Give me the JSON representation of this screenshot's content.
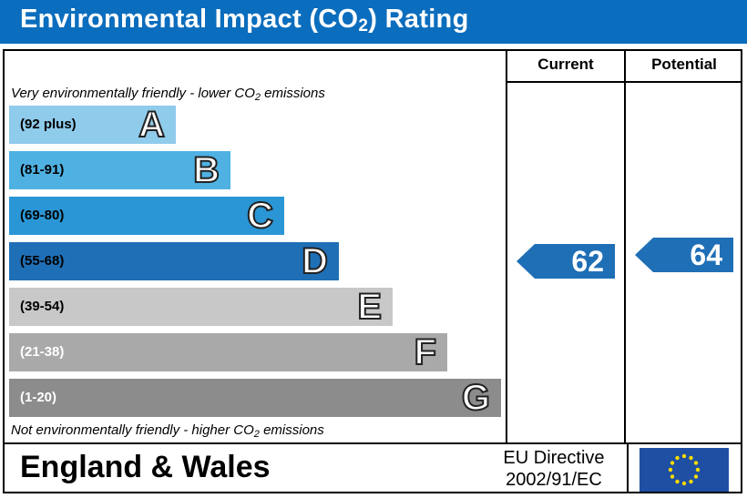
{
  "title": {
    "prefix": "Environmental Impact (CO",
    "sub": "2",
    "suffix": ") Rating"
  },
  "columns": {
    "current": "Current",
    "potential": "Potential"
  },
  "notes": {
    "top_prefix": "Very environmentally friendly - lower CO",
    "top_sub": "2",
    "top_suffix": " emissions",
    "bottom_prefix": "Not environmentally friendly - higher CO",
    "bottom_sub": "2",
    "bottom_suffix": " emissions"
  },
  "chart_data": {
    "type": "bar",
    "bands": [
      {
        "letter": "A",
        "range": "(92 plus)",
        "color": "#8fcbeb",
        "text_color": "#000000"
      },
      {
        "letter": "B",
        "range": "(81-91)",
        "color": "#4fb1e2",
        "text_color": "#000000"
      },
      {
        "letter": "C",
        "range": "(69-80)",
        "color": "#2a96d5",
        "text_color": "#000000"
      },
      {
        "letter": "D",
        "range": "(55-68)",
        "color": "#1f6fb6",
        "text_color": "#000000"
      },
      {
        "letter": "E",
        "range": "(39-54)",
        "color": "#c8c8c8",
        "text_color": "#000000"
      },
      {
        "letter": "F",
        "range": "(21-38)",
        "color": "#a9a9a9",
        "text_color": "#ffffff"
      },
      {
        "letter": "G",
        "range": "(1-20)",
        "color": "#8c8c8c",
        "text_color": "#ffffff"
      }
    ],
    "current": {
      "value": "62",
      "band": "D",
      "color": "#1f6fb6"
    },
    "potential": {
      "value": "64",
      "band": "D",
      "color": "#1f6fb6"
    }
  },
  "footer": {
    "country": "England & Wales",
    "directive_line1": "EU Directive",
    "directive_line2": "2002/91/EC",
    "flag_icon": "eu-flag-icon"
  }
}
